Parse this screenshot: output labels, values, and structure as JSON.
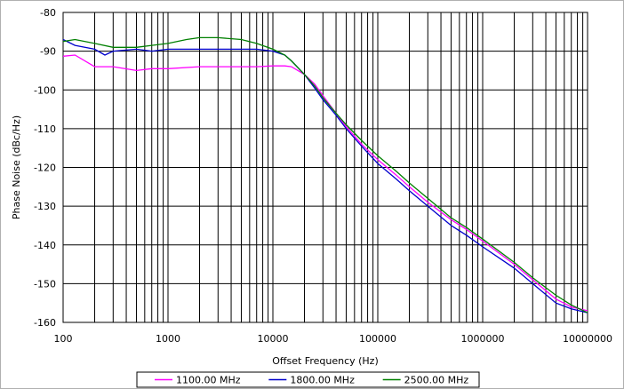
{
  "chart_data": {
    "type": "line",
    "xlabel": "Offset Frequency (Hz)",
    "ylabel": "Phase Noise (dBc/Hz)",
    "x_scale": "log",
    "xlim": [
      100,
      10000000
    ],
    "ylim": [
      -160,
      -80
    ],
    "x_ticks": [
      100,
      1000,
      10000,
      100000,
      1000000,
      10000000
    ],
    "x_tick_labels": [
      "100",
      "1000",
      "10000",
      "100000",
      "1000000",
      "10000000"
    ],
    "y_ticks": [
      -80,
      -90,
      -100,
      -110,
      -120,
      -130,
      -140,
      -150,
      -160
    ],
    "y_tick_labels": [
      "-80",
      "-90",
      "-100",
      "-110",
      "-120",
      "-130",
      "-140",
      "-150",
      "-160"
    ],
    "grid": true,
    "legend_position": "bottom",
    "series": [
      {
        "name": "1100.00 MHz",
        "color": "#ff00ff",
        "x": [
          100,
          130,
          200,
          300,
          500,
          700,
          1000,
          2000,
          3000,
          5000,
          7000,
          10000,
          13000,
          15000,
          20000,
          25000,
          30000,
          40000,
          50000,
          70000,
          100000,
          150000,
          200000,
          300000,
          500000,
          700000,
          1000000,
          2000000,
          3000000,
          5000000,
          7000000,
          10000000
        ],
        "y": [
          -91.3,
          -91,
          -94,
          -94,
          -95,
          -94.5,
          -94.5,
          -94,
          -94,
          -94,
          -94,
          -93.8,
          -93.8,
          -94,
          -96,
          -98.5,
          -101.5,
          -106,
          -109.5,
          -114,
          -118,
          -122,
          -125,
          -129,
          -133.5,
          -136,
          -139,
          -145,
          -149,
          -154,
          -156,
          -157
        ]
      },
      {
        "name": "1800.00 MHz",
        "color": "#0000cc",
        "x": [
          100,
          130,
          200,
          250,
          300,
          500,
          700,
          1000,
          2000,
          3000,
          5000,
          7000,
          10000,
          13000,
          15000,
          20000,
          25000,
          30000,
          40000,
          50000,
          70000,
          100000,
          150000,
          200000,
          300000,
          500000,
          700000,
          1000000,
          2000000,
          3000000,
          5000000,
          7000000,
          10000000
        ],
        "y": [
          -87,
          -88.5,
          -89.5,
          -91,
          -90,
          -89.5,
          -90,
          -89.5,
          -89.5,
          -89.5,
          -89.5,
          -89.5,
          -90,
          -91,
          -92.5,
          -96,
          -99.5,
          -102.5,
          -106.5,
          -110,
          -114.5,
          -119,
          -123,
          -126,
          -130,
          -135,
          -137.5,
          -140.5,
          -146,
          -150,
          -155,
          -156.5,
          -157.5
        ]
      },
      {
        "name": "2500.00 MHz",
        "color": "#008000",
        "x": [
          100,
          130,
          200,
          300,
          500,
          700,
          1000,
          1500,
          2000,
          3000,
          5000,
          7000,
          10000,
          13000,
          15000,
          20000,
          25000,
          30000,
          40000,
          50000,
          70000,
          100000,
          150000,
          200000,
          300000,
          500000,
          700000,
          1000000,
          2000000,
          3000000,
          5000000,
          7000000,
          10000000
        ],
        "y": [
          -87.5,
          -87,
          -88,
          -89,
          -89,
          -88.5,
          -88,
          -87,
          -86.5,
          -86.5,
          -87,
          -88,
          -89.5,
          -91,
          -92.5,
          -96,
          -99,
          -102,
          -106,
          -109,
          -113,
          -117,
          -121,
          -124,
          -128,
          -133,
          -135.5,
          -138.5,
          -144.5,
          -148.5,
          -153,
          -155.5,
          -157.5
        ]
      }
    ]
  }
}
